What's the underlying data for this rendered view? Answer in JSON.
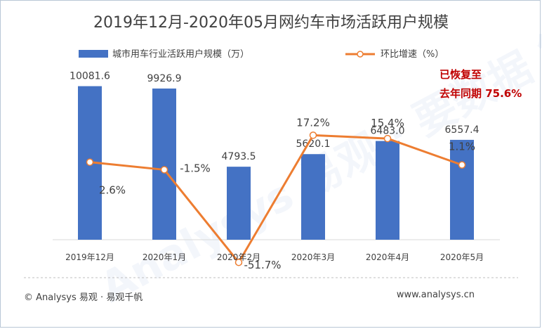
{
  "title": "2019年12月-2020年05月网约车市场活跃用户规模",
  "footer": {
    "left": "© Analysys 易观 · 易观千帆",
    "right": "www.analysys.cn"
  },
  "annotation": {
    "line1": "已恢复至",
    "line2": "去年同期 75.6%"
  },
  "watermark": "Analysys 易观 · 要数据 能",
  "colors": {
    "bar": "#4472c4",
    "line": "#ed7d31",
    "annotation": "#c00000",
    "text": "#404040"
  },
  "chart_data": {
    "type": "bar",
    "categories": [
      "2019年12月",
      "2020年1月",
      "2020年2月",
      "2020年3月",
      "2020年4月",
      "2020年5月"
    ],
    "series": [
      {
        "name": "城市用车行业活跃用户规模（万）",
        "type": "bar",
        "axis": "left",
        "values": [
          10081.6,
          9926.9,
          4793.5,
          5620.1,
          6483.0,
          6557.4
        ],
        "labels": [
          "10081.6",
          "9926.9",
          "4793.5",
          "5620.1",
          "6483.0",
          "6557.4"
        ]
      },
      {
        "name": "环比增速（%）",
        "type": "line",
        "axis": "right",
        "values": [
          2.6,
          -1.5,
          -51.7,
          17.2,
          15.4,
          1.1
        ],
        "labels": [
          "2.6%",
          "-1.5%",
          "-51.7%",
          "17.2%",
          "15.4%",
          "1.1%"
        ]
      }
    ],
    "ylim": [
      0,
      12000
    ],
    "y2lim": [
      -60,
      60
    ],
    "grid": false,
    "legend": "top"
  }
}
